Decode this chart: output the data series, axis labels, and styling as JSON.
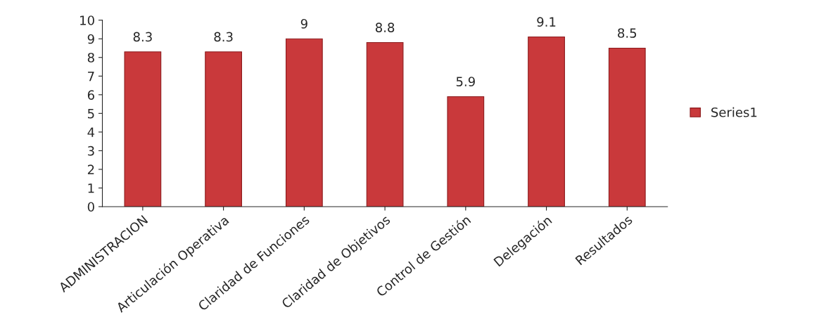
{
  "chart_data": {
    "type": "bar",
    "categories": [
      "ADMINISTRACION",
      "Articulación Operativa",
      "Claridad de Funciones",
      "Claridad de Objetivos",
      "Control de Gestión",
      "Delegación",
      "Resultados"
    ],
    "series": [
      {
        "name": "Series1",
        "color": "#c9393b",
        "values": [
          8.3,
          8.3,
          9,
          8.8,
          5.9,
          9.1,
          8.5
        ]
      }
    ],
    "ylim": [
      0,
      10
    ],
    "yticks": [
      0,
      1,
      2,
      3,
      4,
      5,
      6,
      7,
      8,
      9,
      10
    ],
    "data_labels": true,
    "legend": "right",
    "grid": false
  }
}
